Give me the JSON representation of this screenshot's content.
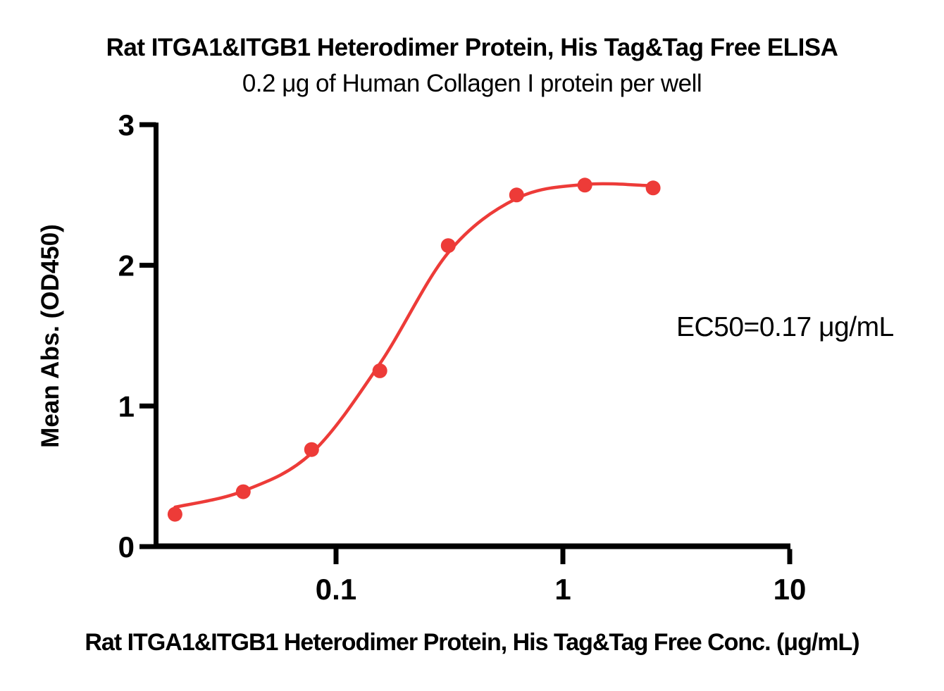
{
  "colors": {
    "curve": "#ED3B38",
    "marker": "#ED3B38",
    "axis": "#000000",
    "text": "#000000",
    "background": "#FFFFFF"
  },
  "chart_data": {
    "type": "scatter",
    "title": "Rat ITGA1&ITGB1 Heterodimer Protein, His Tag&Tag Free ELISA",
    "subtitle": "0.2 μg of Human Collagen I protein per well",
    "xlabel": "Rat ITGA1&ITGB1 Heterodimer Protein, His Tag&Tag Free Conc. (μg/mL)",
    "ylabel": "Mean Abs. (OD450)",
    "annotation": "EC50=0.17 μg/mL",
    "ec50_value": 0.17,
    "x_scale": "log10",
    "xlim": [
      0.0161,
      10
    ],
    "ylim": [
      0,
      3
    ],
    "x_ticks": [
      0.1,
      1,
      10
    ],
    "x_tick_labels": [
      "0.1",
      "1",
      "10"
    ],
    "y_ticks": [
      0,
      1,
      2,
      3
    ],
    "y_tick_labels": [
      "0",
      "1",
      "2",
      "3"
    ],
    "grid": false,
    "legend": "none",
    "series": [
      {
        "name": "Rat ITGA1&ITGB1 Heterodimer Protein, His Tag&Tag Free",
        "marker": "circle",
        "x": [
          0.0195,
          0.039,
          0.078,
          0.156,
          0.3125,
          0.625,
          1.25,
          2.5
        ],
        "y": [
          0.23,
          0.39,
          0.69,
          1.25,
          2.14,
          2.5,
          2.57,
          2.55
        ]
      }
    ],
    "fit_curve": {
      "model": "4PL sigmoidal dose-response",
      "x": [
        0.0195,
        0.039,
        0.078,
        0.156,
        0.3125,
        0.625,
        1.25,
        2.5
      ],
      "y": [
        0.28,
        0.395,
        0.665,
        1.3,
        2.09,
        2.475,
        2.575,
        2.565
      ]
    }
  }
}
